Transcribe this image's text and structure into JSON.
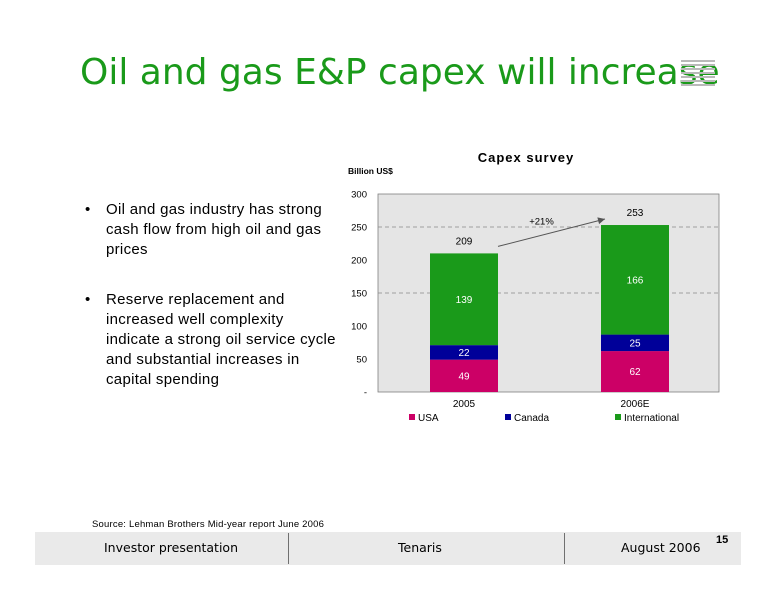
{
  "slide": {
    "title": "Oil and gas E&P capex will increase",
    "bullets": [
      "Oil and gas industry has strong cash flow from high oil and gas prices",
      "Reserve replacement and increased well complexity indicate a strong oil service cycle and substantial increases in capital spending"
    ],
    "source": "Source: Lehman Brothers Mid-year report June 2006",
    "page_number": "15"
  },
  "footer": {
    "left": "Investor  presentation",
    "center": "Tenaris",
    "right": "August 2006"
  },
  "chart_data": {
    "type": "bar",
    "stacked": true,
    "title": "Capex survey",
    "ylabel": "Billion US$",
    "categories": [
      "2005",
      "2006E"
    ],
    "series": [
      {
        "name": "USA",
        "values": [
          49,
          62
        ],
        "color": "#cc0066"
      },
      {
        "name": "Canada",
        "values": [
          22,
          25
        ],
        "color": "#000099"
      },
      {
        "name": "International",
        "values": [
          139,
          166
        ],
        "color": "#1a9a1a"
      }
    ],
    "totals": [
      "209",
      "253"
    ],
    "annotation": "+21%",
    "ylim": [
      0,
      300
    ],
    "yticks": [
      {
        "value": 0,
        "label": "-"
      },
      {
        "value": 50,
        "label": "50"
      },
      {
        "value": 100,
        "label": "100"
      },
      {
        "value": 150,
        "label": "150"
      },
      {
        "value": 200,
        "label": "200"
      },
      {
        "value": 250,
        "label": "250"
      },
      {
        "value": 300,
        "label": "300"
      }
    ],
    "gridlines": [
      150,
      250
    ],
    "plot_background": "#e5e5e5",
    "legend_position": "bottom"
  }
}
